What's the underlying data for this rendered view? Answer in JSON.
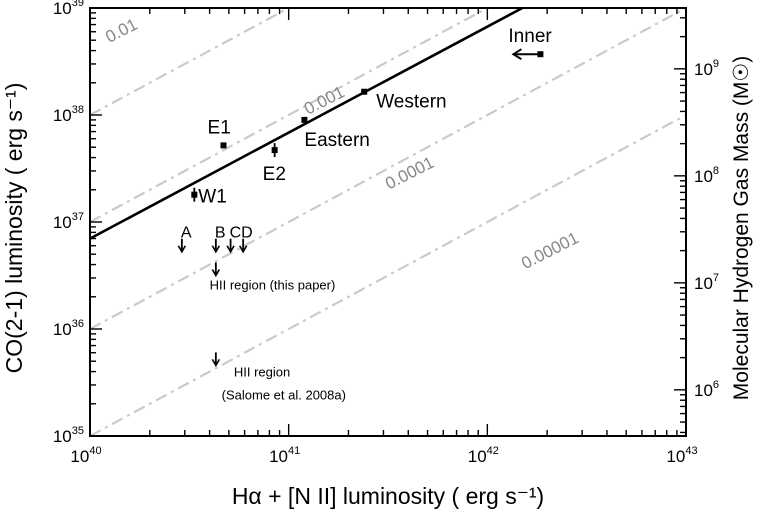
{
  "chart_data": {
    "type": "scatter",
    "x_scale": "log",
    "y_scale": "log",
    "xlim": [
      1e+40,
      1e+43
    ],
    "ylim": [
      1e+35,
      1e+39
    ],
    "xlabel": "Hα + [N II] luminosity  ( erg  s⁻¹)",
    "ylabel": "CO(2-1) luminosity  ( erg  s⁻¹)",
    "y2label": "Molecular Hydrogen Gas Mass (M☉)",
    "x_ticks": [
      {
        "value": 1e+40,
        "base": "10",
        "exp": "40"
      },
      {
        "value": 1e+41,
        "base": "10",
        "exp": "41"
      },
      {
        "value": 1e+42,
        "base": "10",
        "exp": "42"
      },
      {
        "value": 1e+43,
        "base": "10",
        "exp": "43"
      }
    ],
    "y_ticks": [
      {
        "value": 1e+35,
        "base": "10",
        "exp": "35"
      },
      {
        "value": 1e+36,
        "base": "10",
        "exp": "36"
      },
      {
        "value": 1e+37,
        "base": "10",
        "exp": "37"
      },
      {
        "value": 1e+38,
        "base": "10",
        "exp": "38"
      },
      {
        "value": 1e+39,
        "base": "10",
        "exp": "39"
      }
    ],
    "y2_ticks": [
      {
        "value": 1000000.0,
        "base": "10",
        "exp": "6",
        "y_equiv": 2.7e+35
      },
      {
        "value": 10000000.0,
        "base": "10",
        "exp": "7",
        "y_equiv": 2.7e+36
      },
      {
        "value": 100000000.0,
        "base": "10",
        "exp": "8",
        "y_equiv": 2.7e+37
      },
      {
        "value": 1000000000.0,
        "base": "10",
        "exp": "9",
        "y_equiv": 2.7e+38
      }
    ],
    "ratio_lines": [
      {
        "ratio": 0.01,
        "label": "0.01"
      },
      {
        "ratio": 0.001,
        "label": "0.001"
      },
      {
        "ratio": 0.0001,
        "label": "0.0001"
      },
      {
        "ratio": 1e-05,
        "label": "0.00001"
      }
    ],
    "fit_line": {
      "points": [
        [
          1e+40,
          7e+36
        ],
        [
          1.5e+42,
          1e+39
        ]
      ]
    },
    "points": [
      {
        "label": "Inner",
        "x": 1.85e+42,
        "y": 3.7e+38,
        "marker": "square",
        "arrow": "left"
      },
      {
        "label": "Western",
        "x": 2.4e+41,
        "y": 1.65e+38,
        "marker": "square"
      },
      {
        "label": "Eastern",
        "x": 1.2e+41,
        "y": 9e+37,
        "marker": "square"
      },
      {
        "label": "E1",
        "x": 4.7e+40,
        "y": 5.2e+37,
        "marker": "square"
      },
      {
        "label": "E2",
        "x": 8.5e+40,
        "y": 4.7e+37,
        "marker": "square",
        "errorbar": true
      },
      {
        "label": "W1",
        "x": 3.35e+40,
        "y": 1.8e+37,
        "marker": "square",
        "errorbar": true
      },
      {
        "label": "A",
        "x": 2.9e+40,
        "y": 6e+36,
        "marker": "upper-limit"
      },
      {
        "label": "B",
        "x": 4.3e+40,
        "y": 6e+36,
        "marker": "upper-limit"
      },
      {
        "label": "C",
        "x": 5.1e+40,
        "y": 6e+36,
        "marker": "upper-limit"
      },
      {
        "label": "D",
        "x": 5.9e+40,
        "y": 6e+36,
        "marker": "upper-limit"
      },
      {
        "label": "",
        "x": 4.3e+40,
        "y": 3.6e+36,
        "marker": "upper-limit"
      },
      {
        "label": "",
        "x": 4.3e+40,
        "y": 5.2e+35,
        "marker": "upper-limit"
      }
    ],
    "annotations": [
      {
        "text": "HII region (this paper)",
        "x": 4e+40,
        "y": 2.35e+36
      },
      {
        "text": "HII region",
        "x": 5.3e+40,
        "y": 3.6e+35
      },
      {
        "text": "(Salome et al. 2008a)",
        "x": 4.6e+40,
        "y": 2.2e+35
      }
    ]
  }
}
